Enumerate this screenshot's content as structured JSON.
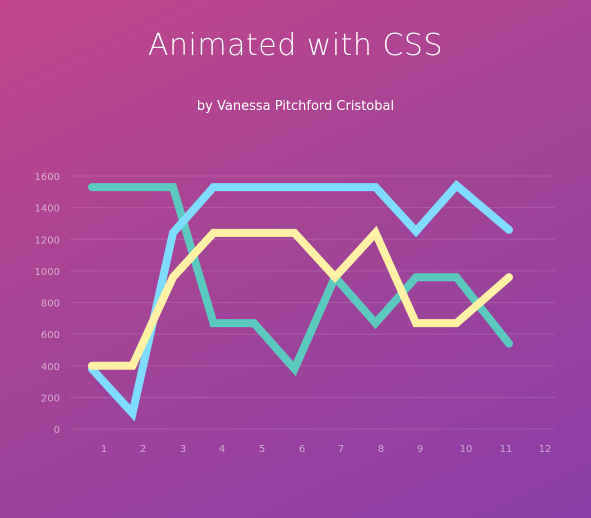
{
  "header": {
    "title": "Animated with CSS",
    "subtitle": "by Vanessa Pitchford Cristobal"
  },
  "colors": {
    "teal": "#5cc9c0",
    "blue": "#7fdcff",
    "yellow": "#fff1a3"
  },
  "chart_data": {
    "type": "line",
    "title": "Animated with CSS",
    "xlabel": "",
    "ylabel": "",
    "x_ticks": [
      "1",
      "2",
      "3",
      "4",
      "5",
      "6",
      "7",
      "8",
      "9",
      "10",
      "11",
      "12"
    ],
    "y_ticks": [
      "0",
      "200",
      "400",
      "600",
      "800",
      "1000",
      "1200",
      "1400",
      "1600"
    ],
    "ylim": [
      0,
      1600
    ],
    "grid": true,
    "legend": "none",
    "series": [
      {
        "color": "#5cc9c0",
        "x": [
          1,
          2,
          3,
          4,
          5,
          6,
          7,
          8,
          9,
          10,
          11
        ],
        "y": [
          1530,
          1530,
          1530,
          670,
          670,
          380,
          960,
          670,
          960,
          960,
          540
        ]
      },
      {
        "color": "#7fdcff",
        "x": [
          1,
          2,
          3,
          4,
          5,
          6,
          7,
          8,
          9,
          10,
          11
        ],
        "y": [
          380,
          100,
          1240,
          1530,
          1530,
          1530,
          1530,
          1530,
          1250,
          1540,
          1260
        ]
      },
      {
        "color": "#fff1a3",
        "x": [
          1,
          2,
          3,
          4,
          5,
          6,
          7,
          8,
          9,
          10,
          11
        ],
        "y": [
          400,
          400,
          960,
          1240,
          1240,
          1240,
          960,
          1240,
          670,
          670,
          960
        ]
      }
    ]
  }
}
